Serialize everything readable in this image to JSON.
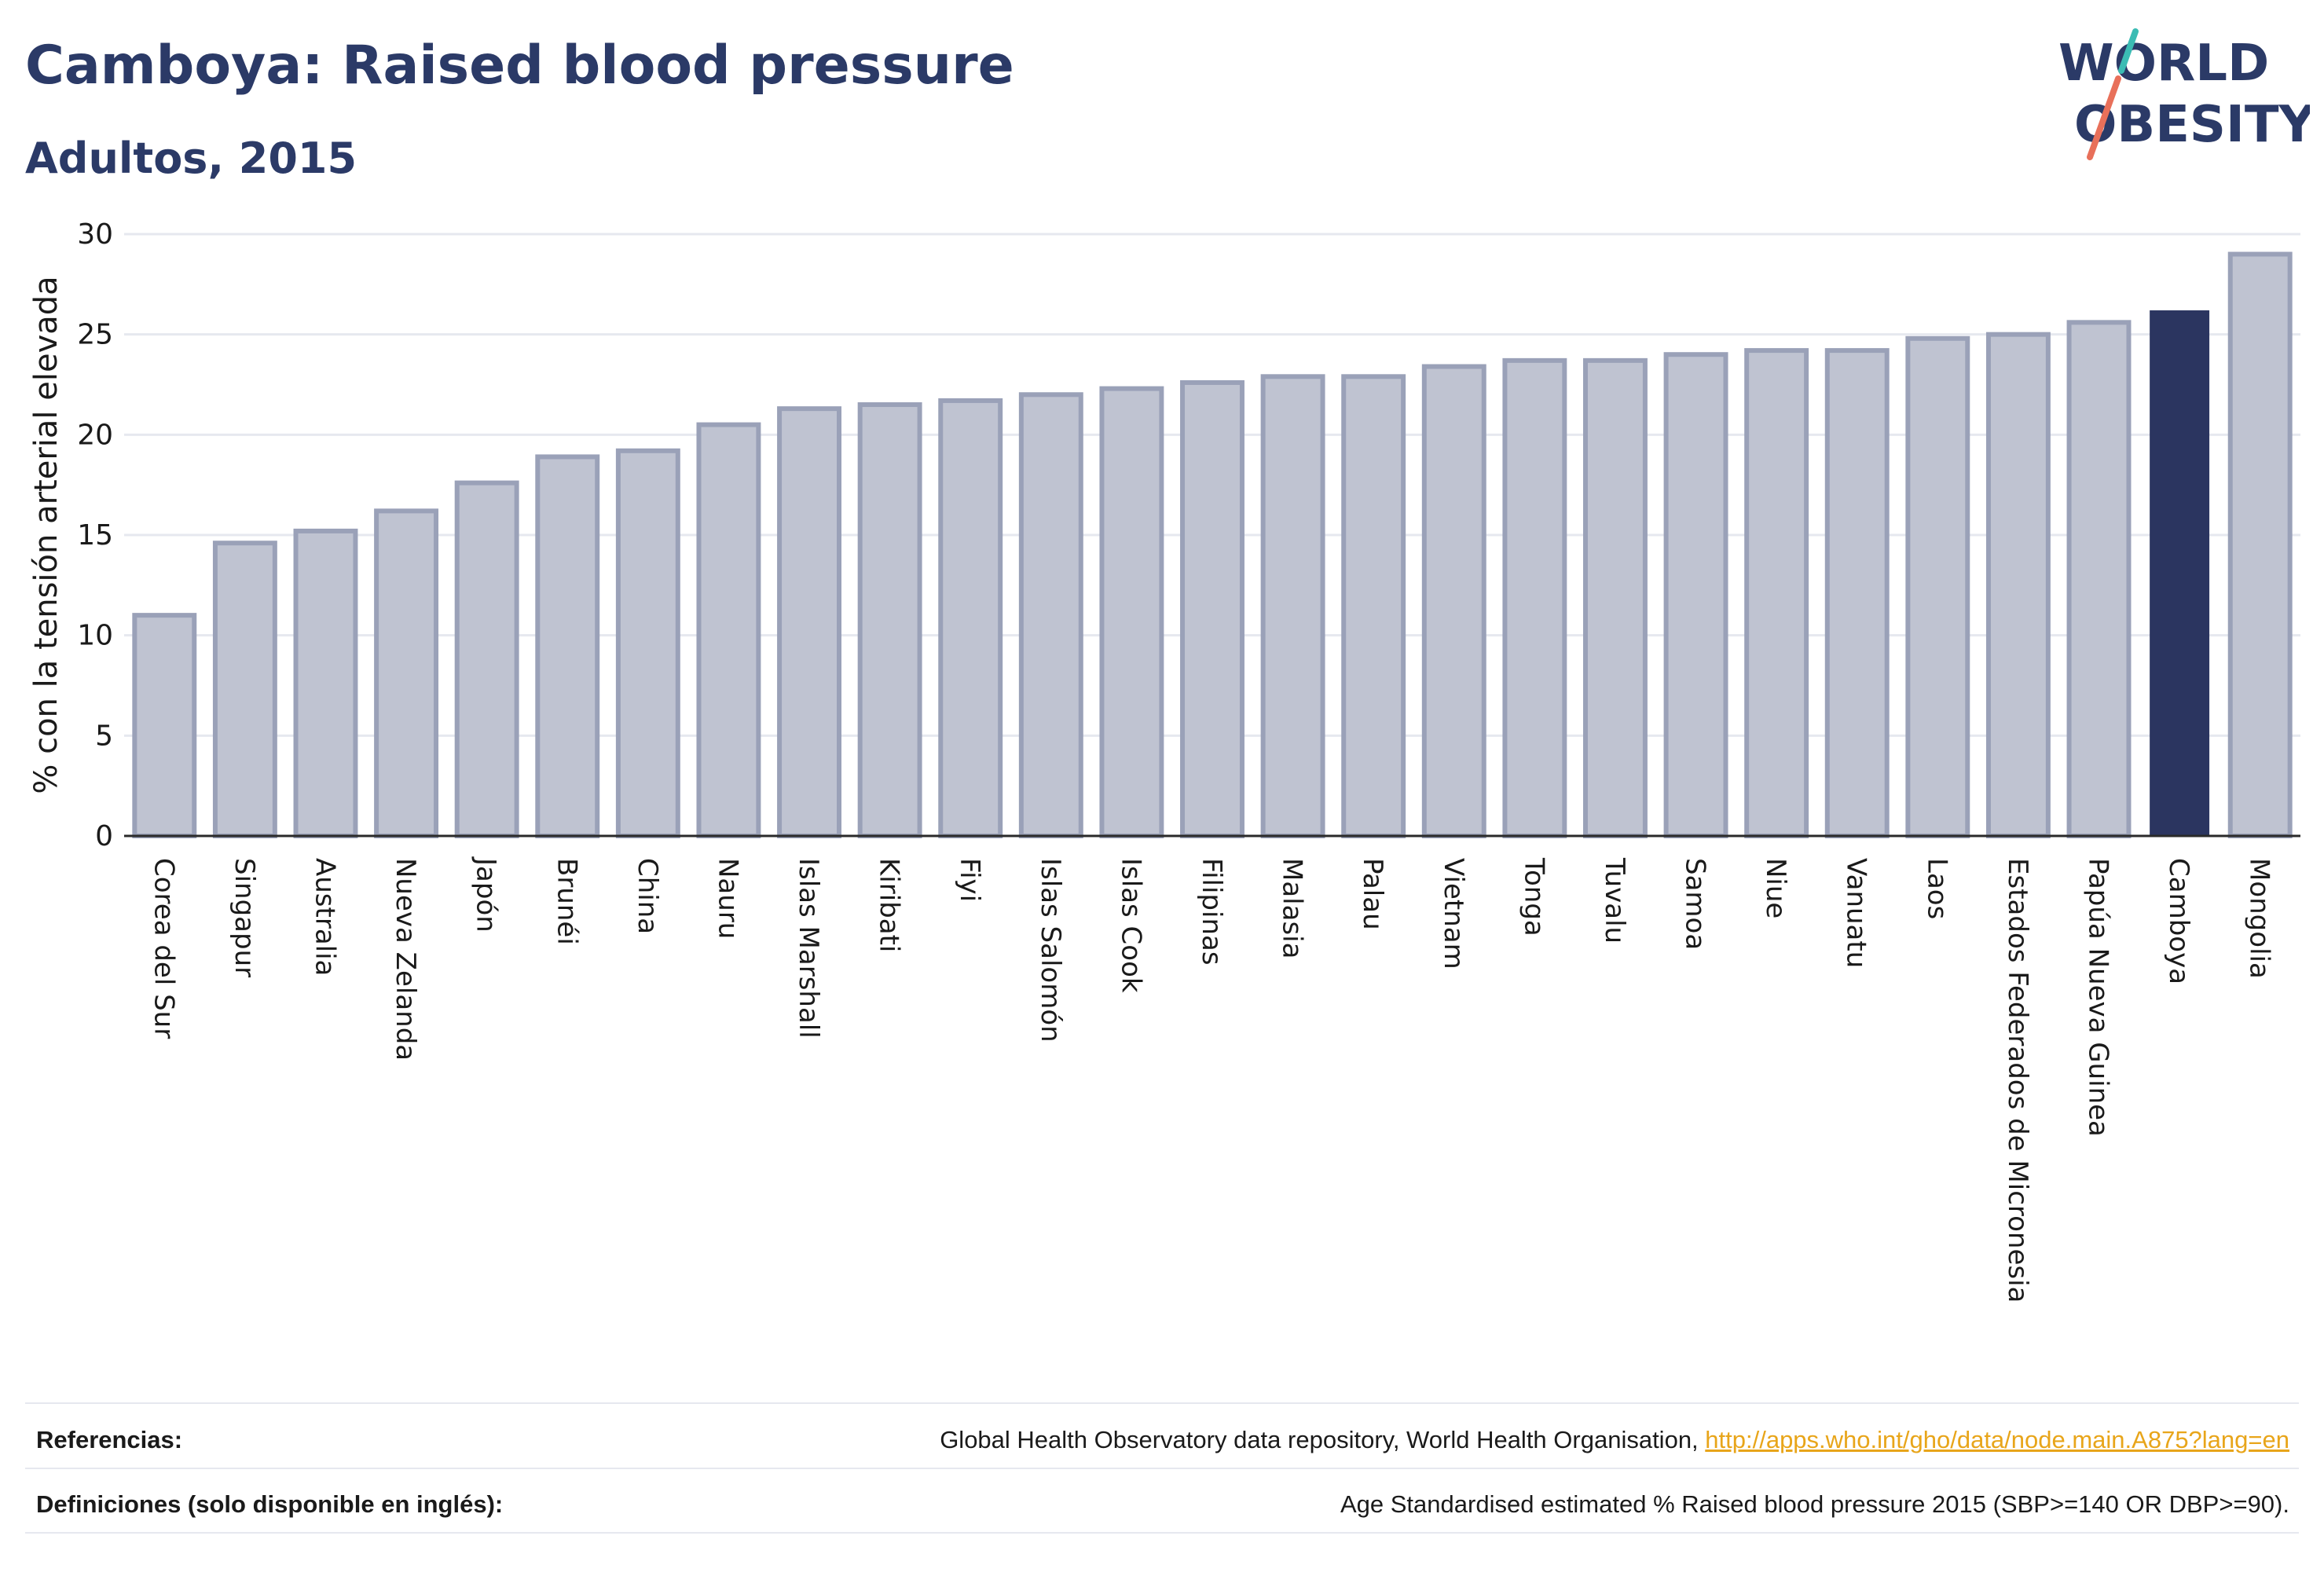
{
  "title": "Camboya: Raised blood pressure",
  "subtitle": "Adultos, 2015",
  "logo": {
    "line1": "WORLD",
    "line2": "OBESITY",
    "accent_teal": "#3bbcb4",
    "accent_red": "#e8705a",
    "text_color": "#2b3a67"
  },
  "colors": {
    "bar": "#bfc3d1",
    "bar_border": "#9aa1b8",
    "highlight": "#2b3560",
    "grid": "#e6e8ef",
    "axis_text": "#1a1a1a"
  },
  "chart_data": {
    "type": "bar",
    "ylabel": "% con la tensión arterial elevada",
    "ylim": [
      0,
      30
    ],
    "yticks": [
      0,
      5,
      10,
      15,
      20,
      25,
      30
    ],
    "grid": true,
    "highlight": "Camboya",
    "categories": [
      "Corea del Sur",
      "Singapur",
      "Australia",
      "Nueva Zelanda",
      "Japón",
      "Brunéi",
      "China",
      "Nauru",
      "Islas Marshall",
      "Kiribati",
      "Fiyi",
      "Islas Salomón",
      "Islas Cook",
      "Filipinas",
      "Malasia",
      "Palau",
      "Vietnam",
      "Tonga",
      "Tuvalu",
      "Samoa",
      "Niue",
      "Vanuatu",
      "Laos",
      "Estados Federados de Micronesia",
      "Papúa Nueva Guinea",
      "Camboya",
      "Mongolia"
    ],
    "values": [
      11.0,
      14.6,
      15.2,
      16.2,
      17.6,
      18.9,
      19.2,
      20.5,
      21.3,
      21.5,
      21.7,
      22.0,
      22.3,
      22.6,
      22.9,
      22.9,
      23.4,
      23.7,
      23.7,
      24.0,
      24.2,
      24.2,
      24.8,
      25.0,
      25.6,
      26.2,
      29.0
    ]
  },
  "footer": {
    "references_label": "Referencias:",
    "references_text": "Global Health Observatory data repository, World Health Organisation, ",
    "references_link": "http://apps.who.int/gho/data/node.main.A875?lang=en",
    "definitions_label": "Definiciones (solo disponible en inglés):",
    "definitions_text": "Age Standardised estimated % Raised blood pressure 2015 (SBP>=140 OR DBP>=90)."
  }
}
